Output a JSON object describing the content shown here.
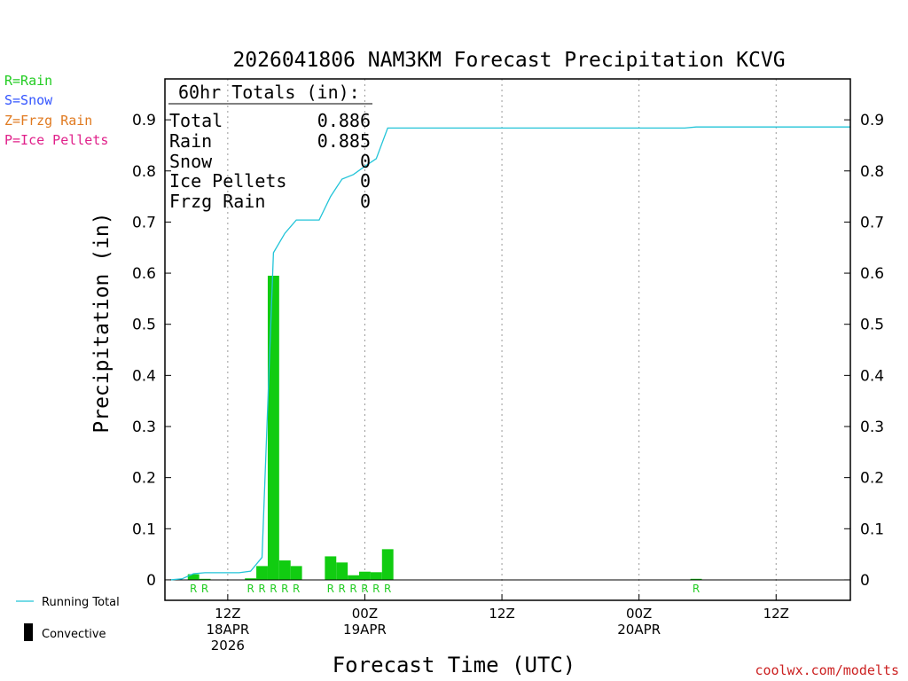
{
  "chart_data": {
    "type": "bar",
    "title": "2026041806 NAM3KM Forecast Precipitation KCVG",
    "ylabel": "Precipitation (in)",
    "xlabel": "Forecast Time (UTC)",
    "ylim": [
      -0.04,
      0.98
    ],
    "y_ticks": [
      0,
      0.1,
      0.2,
      0.3,
      0.4,
      0.5,
      0.6,
      0.7,
      0.8,
      0.9
    ],
    "y_tick_labels": [
      "0",
      "0.1",
      "0.2",
      "0.3",
      "0.4",
      "0.5",
      "0.6",
      "0.7",
      "0.8",
      "0.9"
    ],
    "x_unit": "hours since 2026-04-18 06Z",
    "xlim": [
      0.5,
      60.5
    ],
    "x_ticks": [
      {
        "hour": 6,
        "lines": [
          "12Z",
          "18APR",
          "2026"
        ]
      },
      {
        "hour": 18,
        "lines": [
          "00Z",
          "19APR"
        ]
      },
      {
        "hour": 30,
        "lines": [
          "12Z"
        ]
      },
      {
        "hour": 42,
        "lines": [
          "00Z",
          "20APR"
        ]
      },
      {
        "hour": 54,
        "lines": [
          "12Z"
        ]
      }
    ],
    "hourly_precip": [
      {
        "hour": 3,
        "value": 0.011,
        "type": "R"
      },
      {
        "hour": 4,
        "value": 0.002,
        "type": "R"
      },
      {
        "hour": 8,
        "value": 0.003,
        "type": "R"
      },
      {
        "hour": 9,
        "value": 0.027,
        "type": "R"
      },
      {
        "hour": 10,
        "value": 0.595,
        "type": "R"
      },
      {
        "hour": 11,
        "value": 0.038,
        "type": "R"
      },
      {
        "hour": 12,
        "value": 0.027,
        "type": "R"
      },
      {
        "hour": 15,
        "value": 0.046,
        "type": "R"
      },
      {
        "hour": 16,
        "value": 0.034,
        "type": "R"
      },
      {
        "hour": 17,
        "value": 0.009,
        "type": "R"
      },
      {
        "hour": 18,
        "value": 0.016,
        "type": "R"
      },
      {
        "hour": 19,
        "value": 0.015,
        "type": "R"
      },
      {
        "hour": 20,
        "value": 0.06,
        "type": "R"
      },
      {
        "hour": 47,
        "value": 0.002,
        "type": "R"
      }
    ],
    "running_total": [
      [
        1,
        0
      ],
      [
        2,
        0.002
      ],
      [
        3,
        0.012
      ],
      [
        4,
        0.014
      ],
      [
        7,
        0.014
      ],
      [
        8,
        0.017
      ],
      [
        9,
        0.044
      ],
      [
        10,
        0.64
      ],
      [
        11,
        0.678
      ],
      [
        12,
        0.704
      ],
      [
        14,
        0.704
      ],
      [
        15,
        0.75
      ],
      [
        16,
        0.784
      ],
      [
        17,
        0.793
      ],
      [
        18,
        0.809
      ],
      [
        19,
        0.824
      ],
      [
        20,
        0.884
      ],
      [
        46,
        0.884
      ],
      [
        47,
        0.886
      ],
      [
        60.5,
        0.886
      ]
    ],
    "totals_box": {
      "heading": "60hr Totals (in):",
      "rows": [
        {
          "label": "Total",
          "value": "0.886"
        },
        {
          "label": "Rain",
          "value": "0.885"
        },
        {
          "label": "Snow",
          "value": "0"
        },
        {
          "label": "Ice Pellets",
          "value": "0"
        },
        {
          "label": "Frzg Rain",
          "value": "0"
        }
      ]
    },
    "type_legend": [
      {
        "text": "R=Rain",
        "color": "#22cc22"
      },
      {
        "text": "S=Snow",
        "color": "#3355ff"
      },
      {
        "text": "Z=Frzg Rain",
        "color": "#e07a20"
      },
      {
        "text": "P=Ice Pellets",
        "color": "#e0208a"
      }
    ],
    "series_legend": [
      {
        "text": "Running Total",
        "color": "#22c4d8"
      },
      {
        "text": "Convective",
        "color": "#000000"
      }
    ],
    "colors": {
      "bar": "#11cc11",
      "running_total": "#22c4d8",
      "type_label": "#22cc22",
      "credit": "#cc2222"
    },
    "grid": "vertical dotted at x ticks",
    "credit": "coolwx.com/modelts"
  }
}
